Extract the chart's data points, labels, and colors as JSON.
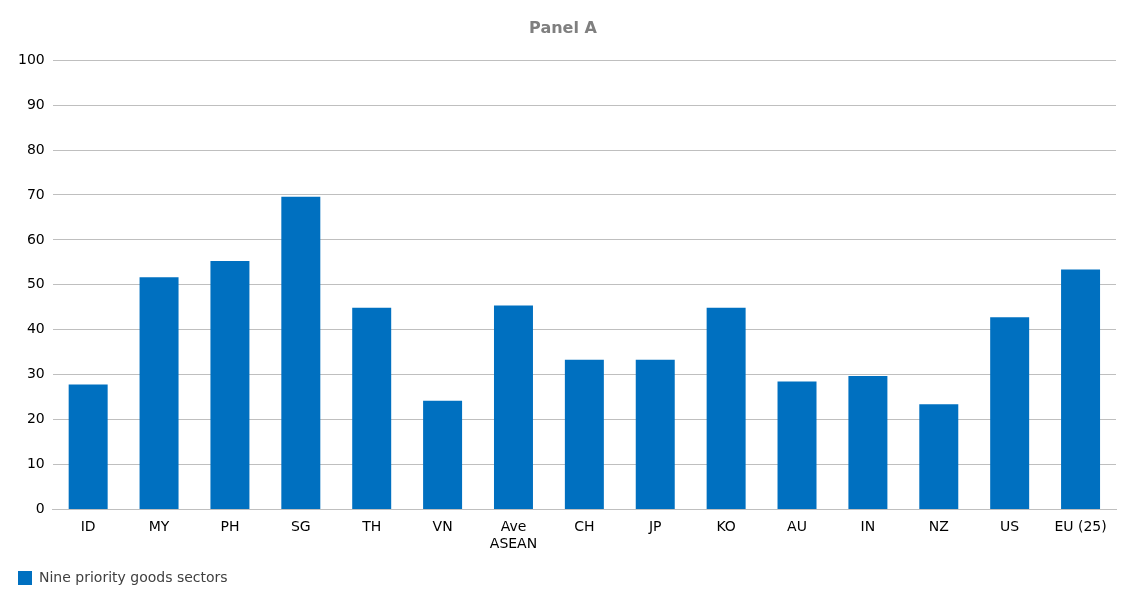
{
  "chart_data": {
    "type": "bar",
    "title": "Panel A",
    "categories": [
      "ID",
      "MY",
      "PH",
      "SG",
      "TH",
      "VN",
      "Ave ASEAN",
      "CH",
      "JP",
      "KO",
      "AU",
      "IN",
      "NZ",
      "US",
      "EU (25)"
    ],
    "series": [
      {
        "name": "Nine priority goods sectors",
        "color": "#0070c0",
        "values": [
          27.8,
          51.7,
          55.3,
          69.6,
          44.9,
          24.2,
          45.4,
          33.3,
          33.3,
          44.9,
          28.5,
          29.7,
          23.4,
          42.8,
          53.4
        ]
      }
    ],
    "ylim": [
      0,
      100
    ],
    "yticks": [
      0,
      10,
      20,
      30,
      40,
      50,
      60,
      70,
      80,
      90,
      100
    ],
    "grid": "y",
    "legend": "bottom"
  }
}
